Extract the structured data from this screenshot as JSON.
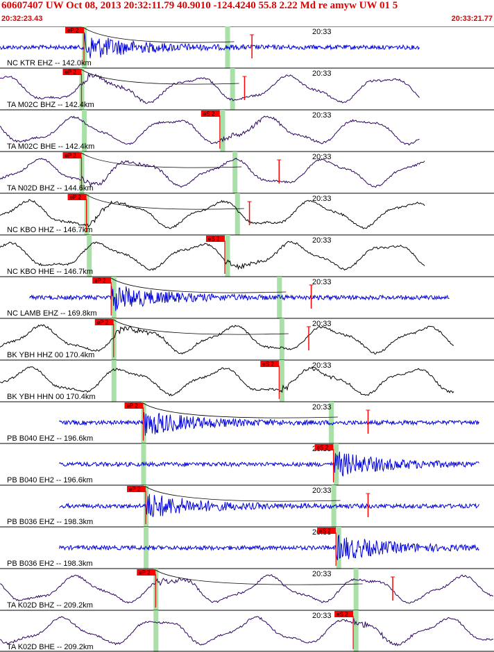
{
  "header": {
    "title": "60607407 UW Oct 08, 2013 20:32:11.79   40.9010 -124.4240 55.8 2.22 Md re amyw UW 01   5",
    "start_time": "20:32:23.43",
    "end_time": "20:33:21.77"
  },
  "time_mark": "20:33",
  "colors": {
    "header": "#e00000",
    "pick": "#ff0000",
    "window": "#a8e0a8",
    "blue": "#0000dd",
    "purple": "#2a0060",
    "black": "#000000"
  },
  "traces": [
    {
      "label": "NC KTR EHZ -- 142.0km",
      "color": "blue",
      "kind": "hf",
      "start": 0.0,
      "end": 0.85,
      "pick": {
        "label": "eP 2",
        "t": 0.17
      },
      "window": [
        0.17,
        0.46
      ],
      "decay": true,
      "marker": 0.51
    },
    {
      "label": "TA M02C BHZ -- 142.4km",
      "color": "purple",
      "kind": "lp",
      "start": 0.0,
      "end": 0.85,
      "pick": {
        "label": "eP 2",
        "t": 0.165
      },
      "window": [
        0.165,
        0.47
      ],
      "decay": true,
      "marker": 0.495
    },
    {
      "label": "TA M02C BHE -- 142.4km",
      "color": "purple",
      "kind": "lp",
      "start": 0.0,
      "end": 0.85,
      "pick": {
        "label": "eS 2",
        "t": 0.445
      },
      "window": [
        0.17,
        0.45
      ],
      "decay": false,
      "marker": null
    },
    {
      "label": "TA N02D BHZ -- 144.6km",
      "color": "purple",
      "kind": "lp",
      "start": 0.0,
      "end": 0.86,
      "pick": {
        "label": "eP 2",
        "t": 0.165
      },
      "window": [
        0.165,
        0.475
      ],
      "decay": true,
      "marker": 0.565
    },
    {
      "label": "NC KBO HHZ -- 146.7km",
      "color": "black",
      "kind": "lp",
      "start": 0.0,
      "end": 0.86,
      "pick": {
        "label": "eP 2",
        "t": 0.175
      },
      "window": [
        0.175,
        0.48
      ],
      "decay": true,
      "marker": 0.505
    },
    {
      "label": "NC KBO HHE -- 146.7km",
      "color": "black",
      "kind": "lp",
      "start": 0.0,
      "end": 0.86,
      "pick": {
        "label": "eS 2",
        "t": 0.455
      },
      "window": [
        0.18,
        0.46
      ],
      "decay": false,
      "marker": null
    },
    {
      "label": "NC LAMB EHZ -- 169.8km",
      "color": "blue",
      "kind": "hf",
      "start": 0.06,
      "end": 0.91,
      "pick": {
        "label": "eP 2",
        "t": 0.225
      },
      "window": [
        0.23,
        0.565
      ],
      "decay": true,
      "marker": 0.63
    },
    {
      "label": "BK YBH HHZ 00 170.4km",
      "color": "black",
      "kind": "lp",
      "start": 0.0,
      "end": 0.92,
      "pick": {
        "label": "eP 2",
        "t": 0.23
      },
      "window": [
        0.23,
        0.57
      ],
      "decay": true,
      "marker": 0.625
    },
    {
      "label": "BK YBH HHN 00 170.4km",
      "color": "black",
      "kind": "lp",
      "start": 0.0,
      "end": 0.92,
      "pick": {
        "label": "eS 2",
        "t": 0.565
      },
      "window": [
        0.23,
        0.57
      ],
      "decay": false,
      "marker": null
    },
    {
      "label": "PB B040 EHZ -- 196.6km",
      "color": "blue",
      "kind": "hf",
      "start": 0.12,
      "end": 0.97,
      "pick": {
        "label": "eP 2",
        "t": 0.29
      },
      "window": [
        0.29,
        0.67
      ],
      "decay": true,
      "marker": 0.745
    },
    {
      "label": "PB B040 EH2 -- 196.6km",
      "color": "blue",
      "kind": "hf",
      "start": 0.12,
      "end": 0.97,
      "pick": {
        "label": "eS 2",
        "t": 0.675
      },
      "window": [
        0.29,
        0.68
      ],
      "decay": false,
      "marker": null
    },
    {
      "label": "PB B036 EHZ -- 198.3km",
      "color": "blue",
      "kind": "hf",
      "start": 0.12,
      "end": 0.97,
      "pick": {
        "label": "eP 2",
        "t": 0.295
      },
      "window": [
        0.295,
        0.675
      ],
      "decay": true,
      "marker": 0.745
    },
    {
      "label": "PB B036 EH2 -- 198.3km",
      "color": "blue",
      "kind": "hf",
      "start": 0.12,
      "end": 0.97,
      "pick": {
        "label": "eS 2",
        "t": 0.68
      },
      "window": [
        0.295,
        0.685
      ],
      "decay": false,
      "marker": null
    },
    {
      "label": "TA K02D BHZ -- 209.2km",
      "color": "purple",
      "kind": "lp",
      "start": 0.0,
      "end": 1.0,
      "pick": {
        "label": "eP 2",
        "t": 0.315
      },
      "window": [
        0.315,
        0.72
      ],
      "decay": true,
      "marker": 0.795
    },
    {
      "label": "TA K02D BHE -- 209.2km",
      "color": "purple",
      "kind": "lp",
      "start": 0.0,
      "end": 1.0,
      "pick": {
        "label": "eS 2",
        "t": 0.715
      },
      "window": [
        0.315,
        0.72
      ],
      "decay": false,
      "marker": null
    }
  ]
}
